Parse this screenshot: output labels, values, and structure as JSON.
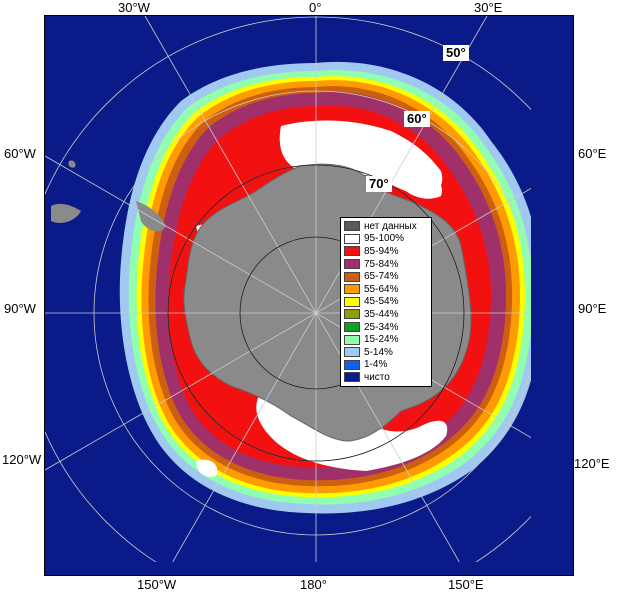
{
  "lon_labels": {
    "top": [
      "30°W",
      "0°",
      "30°E"
    ],
    "left": [
      "60°W",
      "90°W",
      "120°W"
    ],
    "right": [
      "60°E",
      "90°E",
      "120°E"
    ],
    "bottom": [
      "150°W",
      "180°",
      "150°E"
    ]
  },
  "lat_labels": [
    "50°",
    "60°",
    "70°"
  ],
  "legend": [
    {
      "label": "нет данных",
      "color": "#5a5a5a"
    },
    {
      "label": "95-100%",
      "color": "#ffffff"
    },
    {
      "label": "85-94%",
      "color": "#f21010"
    },
    {
      "label": "75-84%",
      "color": "#a0306a"
    },
    {
      "label": "65-74%",
      "color": "#cc6010"
    },
    {
      "label": "55-64%",
      "color": "#ff9a00"
    },
    {
      "label": "45-54%",
      "color": "#ffff00"
    },
    {
      "label": "35-44%",
      "color": "#8aa010"
    },
    {
      "label": "25-34%",
      "color": "#10a020"
    },
    {
      "label": "15-24%",
      "color": "#90ffb0"
    },
    {
      "label": "5-14%",
      "color": "#a0c8f0"
    },
    {
      "label": "1-4%",
      "color": "#1060f0"
    },
    {
      "label": "чисто",
      "color": "#0a1a88"
    }
  ],
  "colors": {
    "ocean": "#0a1a88",
    "land": "#8a8a8a",
    "grid": "#cccccc"
  }
}
